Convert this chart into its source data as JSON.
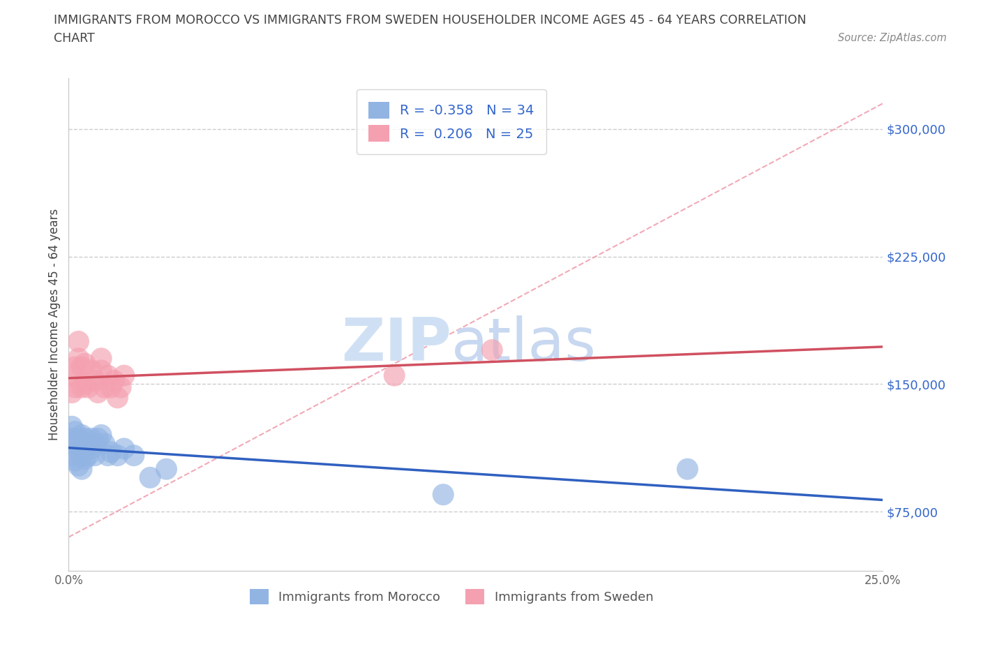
{
  "title_line1": "IMMIGRANTS FROM MOROCCO VS IMMIGRANTS FROM SWEDEN HOUSEHOLDER INCOME AGES 45 - 64 YEARS CORRELATION",
  "title_line2": "CHART",
  "source": "Source: ZipAtlas.com",
  "ylabel": "Householder Income Ages 45 - 64 years",
  "xlim": [
    0.0,
    0.25
  ],
  "ylim": [
    40000,
    330000
  ],
  "yticks": [
    75000,
    150000,
    225000,
    300000
  ],
  "ytick_labels": [
    "$75,000",
    "$150,000",
    "$225,000",
    "$300,000"
  ],
  "xticks": [
    0.0,
    0.05,
    0.1,
    0.15,
    0.2,
    0.25
  ],
  "xtick_labels": [
    "0.0%",
    "",
    "",
    "",
    "",
    "25.0%"
  ],
  "R_morocco": -0.358,
  "N_morocco": 34,
  "R_sweden": 0.206,
  "N_sweden": 25,
  "morocco_color": "#92b4e3",
  "sweden_color": "#f4a0b0",
  "morocco_line_color": "#3060c0",
  "sweden_line_color": "#d05060",
  "diag_line_color": "#f0a0b0",
  "grid_color": "#cccccc",
  "bg_color": "#ffffff",
  "title_color": "#444444",
  "source_color": "#888888",
  "ytick_color": "#3366cc",
  "xtick_color": "#666666",
  "legend_label_color": "#3366cc",
  "bottom_legend_color": "#555555",
  "morocco_x": [
    0.001,
    0.001,
    0.001,
    0.002,
    0.002,
    0.002,
    0.003,
    0.003,
    0.003,
    0.004,
    0.004,
    0.004,
    0.004,
    0.005,
    0.005,
    0.005,
    0.006,
    0.006,
    0.007,
    0.007,
    0.008,
    0.008,
    0.009,
    0.01,
    0.011,
    0.012,
    0.013,
    0.015,
    0.017,
    0.02,
    0.025,
    0.03,
    0.115,
    0.19
  ],
  "morocco_y": [
    125000,
    118000,
    108000,
    122000,
    115000,
    105000,
    118000,
    110000,
    102000,
    120000,
    115000,
    108000,
    100000,
    118000,
    112000,
    106000,
    115000,
    108000,
    118000,
    112000,
    115000,
    108000,
    118000,
    120000,
    115000,
    108000,
    110000,
    108000,
    112000,
    108000,
    95000,
    100000,
    85000,
    100000
  ],
  "sweden_x": [
    0.001,
    0.001,
    0.002,
    0.002,
    0.003,
    0.003,
    0.004,
    0.004,
    0.005,
    0.005,
    0.006,
    0.007,
    0.008,
    0.009,
    0.01,
    0.01,
    0.011,
    0.012,
    0.013,
    0.014,
    0.015,
    0.016,
    0.017,
    0.1,
    0.13
  ],
  "sweden_y": [
    155000,
    145000,
    160000,
    148000,
    175000,
    165000,
    160000,
    148000,
    162000,
    150000,
    148000,
    158000,
    152000,
    145000,
    165000,
    158000,
    148000,
    155000,
    148000,
    152000,
    142000,
    148000,
    155000,
    155000,
    170000
  ]
}
